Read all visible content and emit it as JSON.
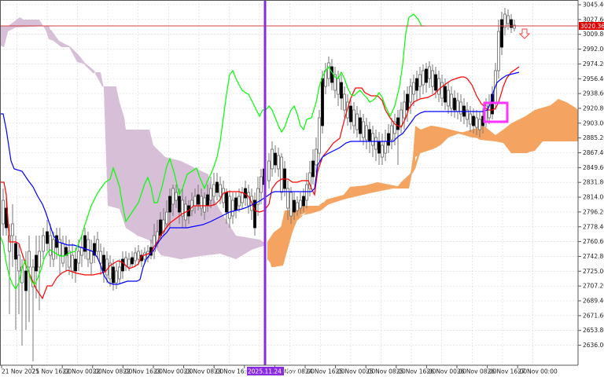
{
  "chart_data": {
    "type": "candlestick",
    "title": "",
    "indicator": "Ichimoku Kinko Hyo",
    "xlabel": "",
    "ylabel": "",
    "ylim": [
      2625.0,
      3050.0
    ],
    "grid": true,
    "y_ticks": [
      "3045.40",
      "3027.60",
      "3009.80",
      "2992.00",
      "2974.20",
      "2956.40",
      "2938.60",
      "2920.80",
      "2903.00",
      "2885.20",
      "2867.40",
      "2849.60",
      "2831.80",
      "2814.00",
      "2796.20",
      "2778.40",
      "2760.60",
      "2742.80",
      "2725.00",
      "2707.20",
      "2689.40",
      "2671.60",
      "2653.80",
      "2636.00"
    ],
    "x_ticks": [
      "21 Nov 2025",
      "21 Nov 16:00",
      "22 Nov 00:00",
      "22 Nov 08:00",
      "22 Nov 16:00",
      "23 Nov 00:00",
      "23 Nov 08:00",
      "23 Nov 16:00",
      "24 Nov 00:00",
      "24 Nov 08:00",
      "24 Nov 16:00",
      "25 Nov 00:00",
      "25 Nov 08:00",
      "25 Nov 16:00",
      "26 Nov 00:00",
      "26 Nov 08:00",
      "26 Nov 16:00",
      "27 Nov 00:00"
    ],
    "current_price": "3020.36",
    "crosshair_date": "2025.11.24 06:00",
    "series": [
      {
        "name": "Tenkan-sen",
        "color": "#ff0000"
      },
      {
        "name": "Kijun-sen",
        "color": "#0000ff"
      },
      {
        "name": "Chikou Span",
        "color": "#00ff00"
      },
      {
        "name": "Senkou Span A/B Cloud (bearish)",
        "color": "#d8bfd8"
      },
      {
        "name": "Senkou Span A/B Cloud (bullish)",
        "color": "#f4a460"
      }
    ],
    "annotations": [
      "sell arrow near 3006",
      "magenta box highlight around 2920 on 26 Nov 12:00",
      "vertical purple line at 2025.11.24 06:00"
    ]
  },
  "colors": {
    "background": "#ffffff",
    "grid": "#d8d8d8",
    "tenkan": "#ff0000",
    "kijun": "#0000ff",
    "chikou": "#00ff00",
    "cloud_bear": "#d8bfd8",
    "cloud_bull": "#f4a460",
    "vline": "#8a2be2",
    "price_line": "#d04040",
    "price_tag_bg": "#e00000",
    "highlight_box": "#ff33ff",
    "candle_bull": "#ffffff",
    "candle_bear": "#000000"
  }
}
